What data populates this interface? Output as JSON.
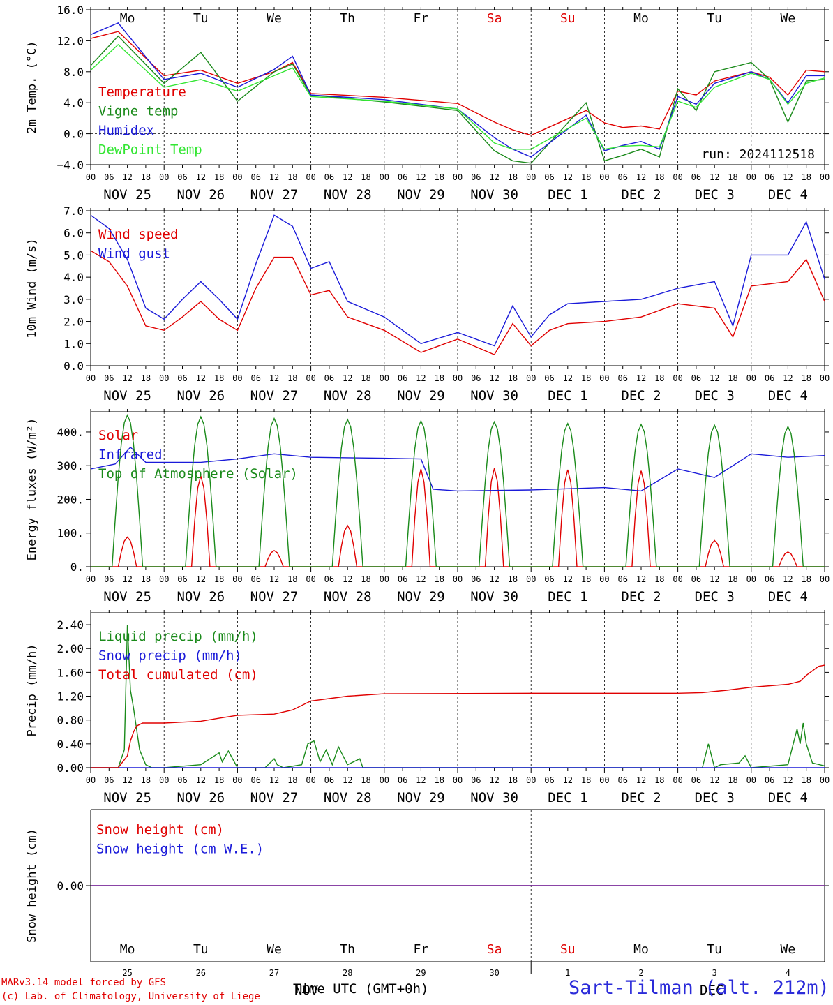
{
  "colors": {
    "red": "#e00000",
    "green": "#1a8a1a",
    "blue": "#1a1ad9",
    "lightgreen": "#33e633",
    "purple": "#7a2a9a",
    "station": "#2b2bd9"
  },
  "days": {
    "weekday": [
      "Mo",
      "Tu",
      "We",
      "Th",
      "Fr",
      "Sa",
      "Su",
      "Mo",
      "Tu",
      "We"
    ],
    "weekend": [
      false,
      false,
      false,
      false,
      false,
      true,
      true,
      false,
      false,
      false
    ],
    "date_labels": [
      "NOV 25",
      "NOV 26",
      "NOV 27",
      "NOV 28",
      "NOV 29",
      "NOV 30",
      "DEC  1",
      "DEC  2",
      "DEC  3",
      "DEC  4"
    ],
    "day_numbers": [
      "25",
      "26",
      "27",
      "28",
      "29",
      "30",
      "1",
      "2",
      "3",
      "4"
    ],
    "hour_labels": [
      "00",
      "06",
      "12",
      "18"
    ],
    "month_labels": [
      "NOV",
      "DEC"
    ]
  },
  "run": "run: 2024112518",
  "footer": {
    "credit1": "MARv3.14 model forced by GFS",
    "credit2": "(c) Lab. of Climatology, University of Liege",
    "xtitle": "Time UTC (GMT+0h)",
    "station": "Sart-Tilman (alt. 212m)"
  },
  "chart_data": [
    {
      "type": "line",
      "ylabel": "2m Temp. (°C)",
      "ylim": [
        -4,
        16
      ],
      "yticks": [
        "16.0",
        "12.0",
        "8.0",
        "4.0",
        "0.0",
        "−4.0"
      ],
      "ytick_values": [
        16,
        12,
        8,
        4,
        0,
        -4
      ],
      "ref_line": 0,
      "x_hours": [
        0,
        9,
        24,
        36,
        48,
        60,
        66,
        72,
        96,
        120,
        132,
        138,
        144,
        162,
        168,
        174,
        180,
        186,
        192,
        198,
        204,
        216,
        222,
        228,
        234,
        240
      ],
      "series": [
        {
          "name": "Temperature",
          "color": "red",
          "values": [
            12.3,
            13.2,
            7.5,
            8.2,
            6.5,
            8.0,
            9.2,
            5.2,
            4.7,
            3.9,
            1.5,
            0.5,
            -0.2,
            3.0,
            1.4,
            0.8,
            1.0,
            0.6,
            5.5,
            5.0,
            6.8,
            8.0,
            7.3,
            5.0,
            8.2,
            8.0
          ]
        },
        {
          "name": "Vigne temp",
          "color": "green",
          "values": [
            8.8,
            12.6,
            6.5,
            10.5,
            4.2,
            8.0,
            9.0,
            5.0,
            4.1,
            3.0,
            -2.2,
            -3.5,
            -3.8,
            4.0,
            -3.5,
            -2.8,
            -2.0,
            -3.0,
            5.8,
            3.0,
            8.0,
            9.2,
            7.0,
            1.5,
            6.8,
            7.0
          ]
        },
        {
          "name": "Humidex",
          "color": "blue",
          "values": [
            12.8,
            14.3,
            7.0,
            7.8,
            6.0,
            8.3,
            10.0,
            5.0,
            4.4,
            3.2,
            -0.5,
            -2.0,
            -3.0,
            2.4,
            -2.2,
            -1.5,
            -1.0,
            -2.0,
            4.8,
            3.8,
            6.5,
            8.0,
            7.0,
            4.0,
            7.5,
            7.5
          ]
        },
        {
          "name": "DewPoint Temp",
          "color": "lightgreen",
          "values": [
            8.2,
            11.5,
            6.0,
            7.0,
            5.5,
            7.5,
            8.5,
            4.8,
            4.2,
            3.2,
            -1.2,
            -2.0,
            -2.0,
            2.0,
            -2.0,
            -1.6,
            -1.5,
            -1.7,
            4.2,
            3.4,
            6.0,
            7.8,
            7.0,
            3.8,
            6.5,
            7.2
          ]
        }
      ]
    },
    {
      "type": "line",
      "ylabel": "10m Wind (m/s)",
      "ylim": [
        0,
        7
      ],
      "yticks": [
        "7.0",
        "6.0",
        "5.0",
        "4.0",
        "3.0",
        "2.0",
        "1.0",
        "0.0"
      ],
      "ytick_values": [
        7,
        6,
        5,
        4,
        3,
        2,
        1,
        0
      ],
      "ref_line": 5,
      "x_hours": [
        0,
        6,
        12,
        18,
        24,
        30,
        36,
        42,
        48,
        54,
        60,
        66,
        72,
        78,
        84,
        96,
        108,
        120,
        132,
        138,
        144,
        150,
        156,
        168,
        180,
        192,
        204,
        210,
        216,
        222,
        228,
        234,
        240
      ],
      "series": [
        {
          "name": "Wind speed",
          "color": "red",
          "values": [
            5.2,
            4.7,
            3.6,
            1.8,
            1.6,
            2.2,
            2.9,
            2.1,
            1.6,
            3.5,
            4.9,
            4.9,
            3.2,
            3.4,
            2.2,
            1.6,
            0.6,
            1.2,
            0.5,
            1.9,
            0.9,
            1.6,
            1.9,
            2.0,
            2.2,
            2.8,
            2.6,
            1.3,
            3.6,
            3.7,
            3.8,
            4.8,
            2.9
          ]
        },
        {
          "name": "Wind gust",
          "color": "blue",
          "values": [
            6.8,
            6.2,
            4.8,
            2.6,
            2.1,
            3.0,
            3.8,
            3.0,
            2.1,
            4.6,
            6.8,
            6.3,
            4.4,
            4.7,
            2.9,
            2.2,
            1.0,
            1.5,
            0.9,
            2.7,
            1.3,
            2.3,
            2.8,
            2.9,
            3.0,
            3.5,
            3.8,
            1.8,
            5.0,
            5.0,
            5.0,
            6.5,
            3.9
          ]
        }
      ]
    },
    {
      "type": "line",
      "ylabel": "Energy fluxes (W/m²)",
      "ylim": [
        0,
        460
      ],
      "yticks": [
        "400.",
        "300.",
        "200.",
        "100.",
        "0."
      ],
      "ytick_values": [
        400,
        300,
        200,
        100,
        0
      ],
      "x_hours": [
        0,
        8,
        13,
        18,
        24,
        36,
        48,
        60,
        72,
        96,
        108,
        112,
        120,
        144,
        168,
        180,
        192,
        204,
        216,
        228,
        240
      ],
      "series": [
        {
          "name": "Solar",
          "color": "red",
          "daily_peak": [
            88,
            270,
            48,
            122,
            290,
            292,
            288,
            285,
            78,
            44
          ]
        },
        {
          "name": "Infrared",
          "color": "blue",
          "values": [
            290,
            305,
            355,
            310,
            310,
            310,
            320,
            335,
            325,
            322,
            320,
            230,
            225,
            228,
            235,
            225,
            290,
            265,
            335,
            325,
            330
          ]
        },
        {
          "name": "Top of Atmosphere (Solar)",
          "color": "green",
          "daily_peak": [
            450,
            445,
            440,
            437,
            433,
            430,
            425,
            422,
            420,
            416
          ]
        }
      ]
    },
    {
      "type": "line",
      "ylabel": "Precip (mm/h)",
      "ylim": [
        0,
        2.6
      ],
      "yticks": [
        "2.40",
        "2.00",
        "1.60",
        "1.20",
        "0.80",
        "0.40",
        "0.00"
      ],
      "ytick_values": [
        2.4,
        2.0,
        1.6,
        1.2,
        0.8,
        0.4,
        0.0
      ],
      "series": [
        {
          "name": "Liquid precip (mm/h)",
          "color": "green",
          "x_hours": [
            0,
            9,
            11,
            12,
            13,
            14,
            16,
            18,
            20,
            24,
            36,
            42,
            43,
            45,
            48,
            57,
            60,
            61,
            63,
            69,
            71,
            73,
            75,
            77,
            79,
            81,
            84,
            88,
            89,
            91,
            93,
            120,
            192,
            200,
            202,
            204,
            206,
            212,
            214,
            216,
            228,
            231,
            232,
            233,
            234,
            236,
            240
          ],
          "values": [
            0,
            0,
            0.3,
            2.4,
            1.3,
            1.0,
            0.3,
            0.05,
            0,
            0,
            0.05,
            0.25,
            0.1,
            0.28,
            0,
            0,
            0.15,
            0.05,
            0,
            0.05,
            0.4,
            0.45,
            0.1,
            0.3,
            0.05,
            0.35,
            0.05,
            0.15,
            0,
            0,
            0,
            0,
            0,
            0,
            0.4,
            0,
            0.05,
            0.08,
            0.2,
            0,
            0.05,
            0.65,
            0.4,
            0.75,
            0.4,
            0.08,
            0.03
          ]
        },
        {
          "name": "Snow precip (mm/h)",
          "color": "blue",
          "x_hours": [
            0,
            240
          ],
          "values": [
            0,
            0
          ]
        },
        {
          "name": "Total cumulated (cm)",
          "color": "red",
          "x_hours": [
            0,
            9,
            12,
            13,
            14,
            15,
            17,
            24,
            36,
            42,
            48,
            60,
            66,
            72,
            84,
            96,
            144,
            180,
            192,
            200,
            208,
            216,
            228,
            232,
            234,
            238,
            240
          ],
          "values": [
            0,
            0,
            0.2,
            0.45,
            0.6,
            0.7,
            0.75,
            0.75,
            0.78,
            0.83,
            0.88,
            0.9,
            0.97,
            1.12,
            1.2,
            1.24,
            1.25,
            1.25,
            1.25,
            1.26,
            1.3,
            1.35,
            1.4,
            1.45,
            1.55,
            1.7,
            1.72
          ]
        }
      ]
    },
    {
      "type": "line",
      "ylabel": "Snow height (cm)",
      "yticks": [
        "0.00"
      ],
      "ytick_values": [
        0
      ],
      "series": [
        {
          "name": "Snow height (cm)",
          "color": "red",
          "x_hours": [
            0,
            240
          ],
          "values": [
            0,
            0
          ]
        },
        {
          "name": "Snow height (cm W.E.)",
          "color": "blue",
          "x_hours": [
            0,
            240
          ],
          "values": [
            0,
            0
          ]
        }
      ]
    }
  ]
}
